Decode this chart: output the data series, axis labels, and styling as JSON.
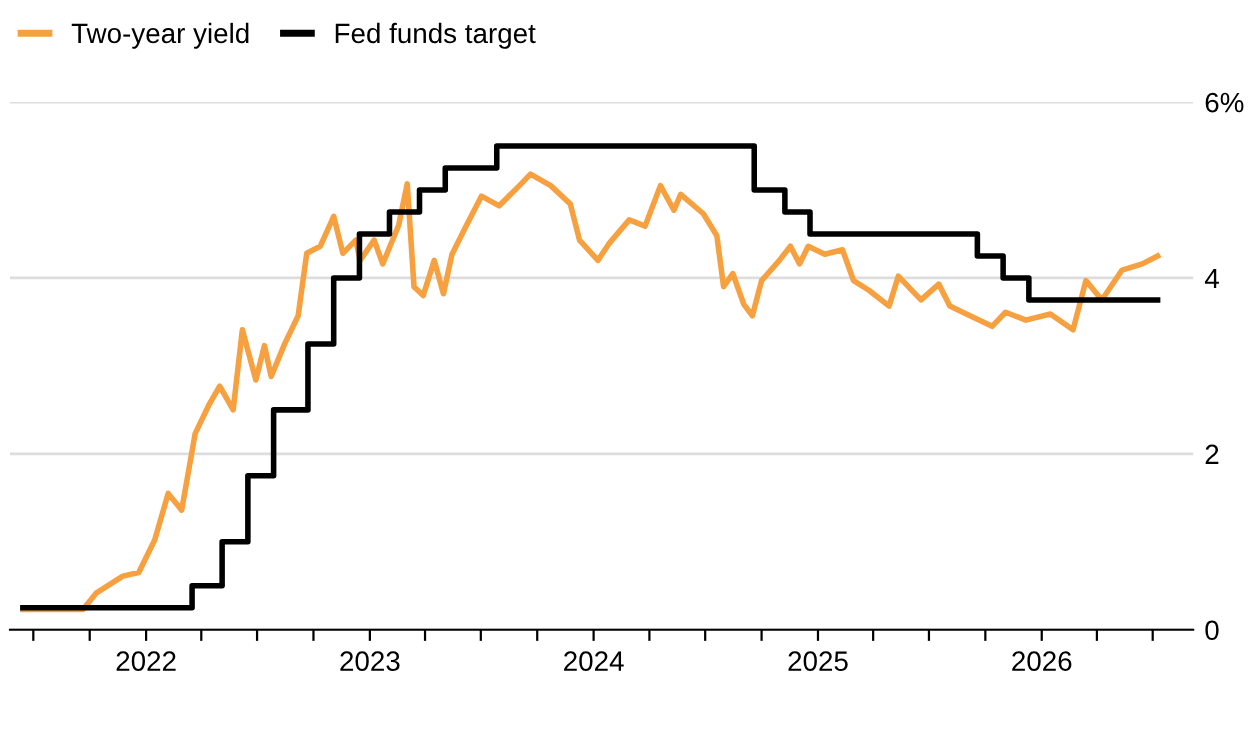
{
  "chart_data": {
    "type": "line",
    "legend": "top left",
    "grid": "y",
    "xlim": [
      "2021-05-24",
      "2026-09-05"
    ],
    "xticks": [
      {
        "value": "2021-07-01",
        "label": null
      },
      {
        "value": "2021-10-01",
        "label": null
      },
      {
        "value": "2022-01-01",
        "label": "2022"
      },
      {
        "value": "2022-04-01",
        "label": null
      },
      {
        "value": "2022-07-01",
        "label": null
      },
      {
        "value": "2022-10-01",
        "label": null
      },
      {
        "value": "2023-01-01",
        "label": "2023"
      },
      {
        "value": "2023-04-01",
        "label": null
      },
      {
        "value": "2023-07-01",
        "label": null
      },
      {
        "value": "2023-10-01",
        "label": null
      },
      {
        "value": "2024-01-01",
        "label": "2024"
      },
      {
        "value": "2024-04-01",
        "label": null
      },
      {
        "value": "2024-07-01",
        "label": null
      },
      {
        "value": "2024-10-01",
        "label": null
      },
      {
        "value": "2025-01-01",
        "label": "2025"
      },
      {
        "value": "2025-04-01",
        "label": null
      },
      {
        "value": "2025-07-01",
        "label": null
      },
      {
        "value": "2025-10-01",
        "label": null
      },
      {
        "value": "2026-01-01",
        "label": "2026"
      },
      {
        "value": "2026-04-01",
        "label": null
      },
      {
        "value": "2026-07-01",
        "label": null
      }
    ],
    "ylim": [
      0,
      6
    ],
    "yticks": [
      0,
      2,
      4,
      {
        "value": 6,
        "label": "6%"
      }
    ],
    "series": [
      {
        "name": "Two-year yield",
        "color": "#f7a040",
        "x": [
          "2021-06-14",
          "2021-09-20",
          "2021-10-12",
          "2021-11-24",
          "2021-12-20",
          "2022-01-15",
          "2022-02-06",
          "2022-02-28",
          "2022-03-22",
          "2022-04-13",
          "2022-05-01",
          "2022-05-23",
          "2022-06-07",
          "2022-06-29",
          "2022-07-13",
          "2022-07-24",
          "2022-08-15",
          "2022-09-06",
          "2022-09-20",
          "2022-10-12",
          "2022-11-03",
          "2022-11-18",
          "2022-12-09",
          "2022-12-16",
          "2023-01-08",
          "2023-01-22",
          "2023-02-17",
          "2023-03-03",
          "2023-03-14",
          "2023-03-29",
          "2023-04-16",
          "2023-05-01",
          "2023-05-15",
          "2023-06-07",
          "2023-07-02",
          "2023-07-31",
          "2023-09-02",
          "2023-09-20",
          "2023-10-23",
          "2023-11-24",
          "2023-12-09",
          "2024-01-08",
          "2024-01-26",
          "2024-02-28",
          "2024-03-25",
          "2024-04-19",
          "2024-05-11",
          "2024-05-22",
          "2024-06-28",
          "2024-07-20",
          "2024-07-31",
          "2024-08-15",
          "2024-09-02",
          "2024-09-16",
          "2024-10-01",
          "2024-10-30",
          "2024-11-17",
          "2024-12-02",
          "2024-12-16",
          "2025-01-12",
          "2025-02-10",
          "2025-02-28",
          "2025-03-25",
          "2025-04-27",
          "2025-05-12",
          "2025-06-18",
          "2025-07-17",
          "2025-08-04",
          "2025-09-06",
          "2025-10-12",
          "2025-11-03",
          "2025-12-06",
          "2026-01-15",
          "2026-02-21",
          "2026-03-14",
          "2026-04-09",
          "2026-05-12",
          "2026-06-14",
          "2026-07-09"
        ],
        "values": [
          0.23,
          0.23,
          0.42,
          0.61,
          0.65,
          1.02,
          1.55,
          1.36,
          2.23,
          2.55,
          2.77,
          2.5,
          3.41,
          2.84,
          3.23,
          2.88,
          3.25,
          3.57,
          4.28,
          4.36,
          4.7,
          4.28,
          4.43,
          4.2,
          4.43,
          4.16,
          4.6,
          5.07,
          3.9,
          3.8,
          4.2,
          3.82,
          4.27,
          4.59,
          4.93,
          4.82,
          5.05,
          5.18,
          5.05,
          4.84,
          4.43,
          4.2,
          4.39,
          4.66,
          4.59,
          5.05,
          4.77,
          4.95,
          4.73,
          4.48,
          3.9,
          4.05,
          3.7,
          3.57,
          3.97,
          4.2,
          4.36,
          4.16,
          4.36,
          4.27,
          4.32,
          3.97,
          3.86,
          3.68,
          4.02,
          3.75,
          3.93,
          3.68,
          3.57,
          3.45,
          3.61,
          3.52,
          3.59,
          3.41,
          3.97,
          3.75,
          4.09,
          4.16,
          4.25
        ]
      },
      {
        "name": "Fed funds target",
        "color": "#000000",
        "type": "step",
        "x": [
          "2021-06-14",
          "2022-03-17",
          "2022-05-05",
          "2022-06-16",
          "2022-07-28",
          "2022-09-22",
          "2022-11-03",
          "2022-12-15",
          "2023-02-02",
          "2023-03-23",
          "2023-05-04",
          "2023-07-27",
          "2024-09-19",
          "2024-11-08",
          "2024-12-19",
          "2025-09-18",
          "2025-10-30",
          "2025-12-11",
          "2026-07-09"
        ],
        "values": [
          0.25,
          0.5,
          1.0,
          1.75,
          2.5,
          3.25,
          4.0,
          4.5,
          4.75,
          5.0,
          5.25,
          5.5,
          5.0,
          4.75,
          4.5,
          4.25,
          4.0,
          3.75,
          3.75
        ]
      }
    ]
  }
}
